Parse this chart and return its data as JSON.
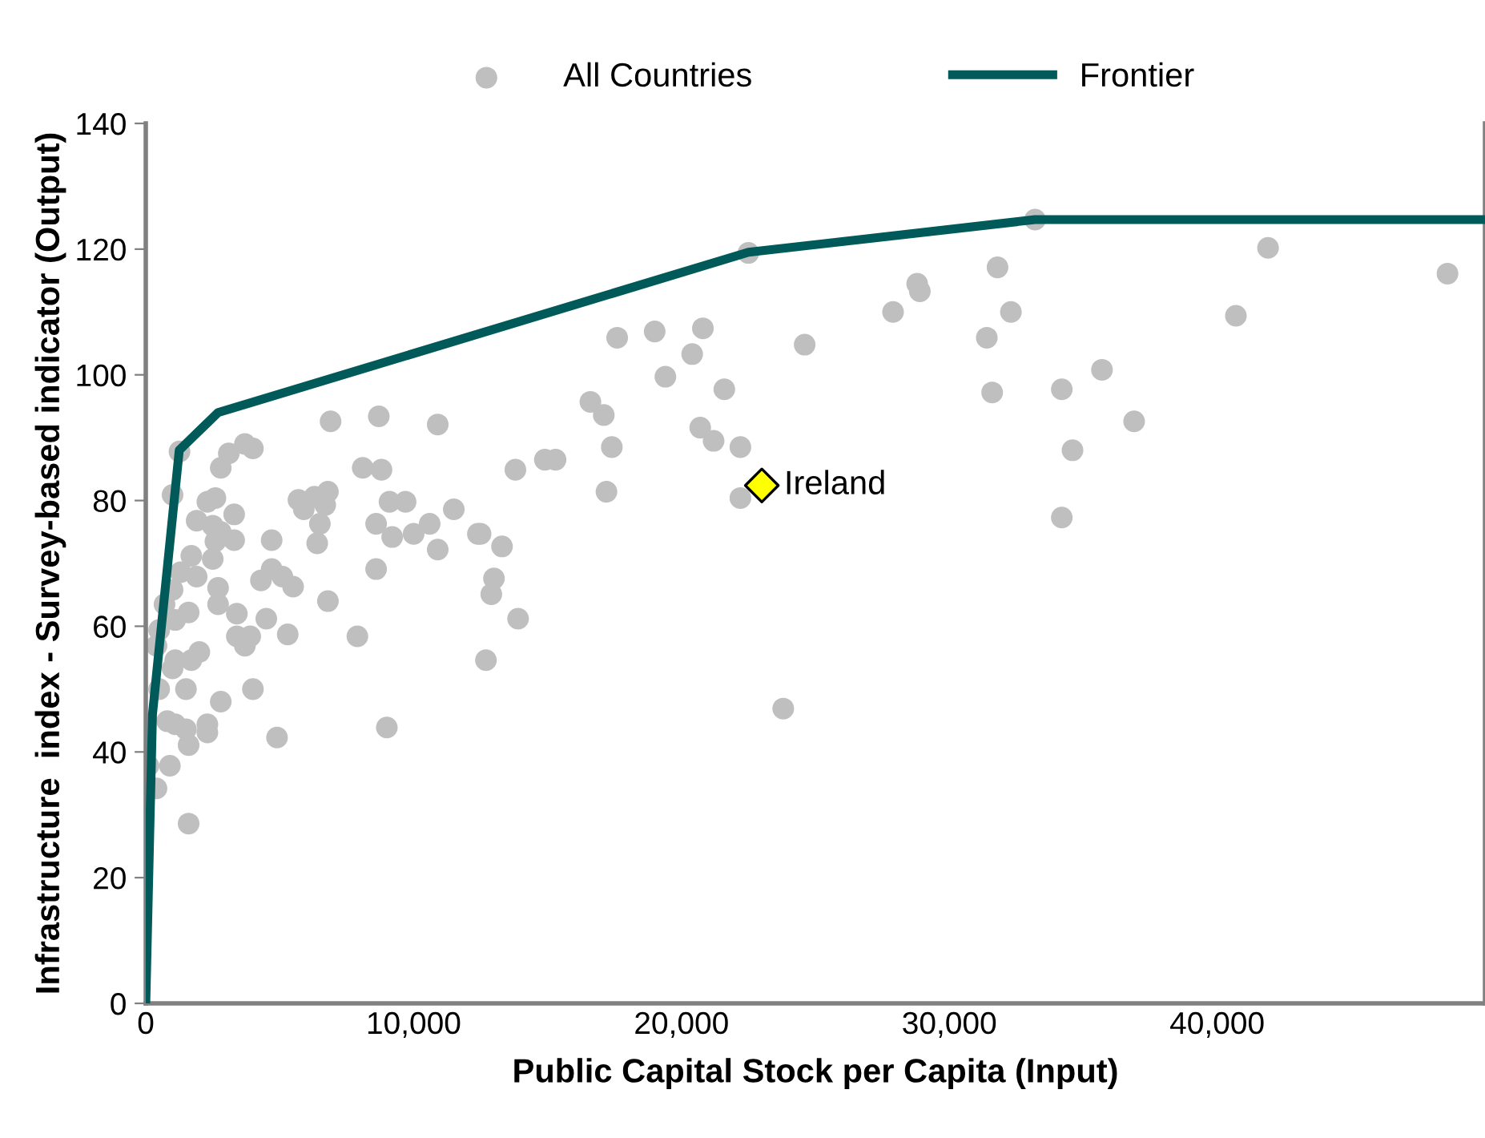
{
  "chart_data": {
    "type": "scatter",
    "xlabel": "Public Capital Stock per Capita (Input)",
    "ylabel": "Infrastructure  index - Survey-based indicator (Output)",
    "xlim": [
      0,
      50000
    ],
    "ylim": [
      0,
      140
    ],
    "xticks": [
      {
        "value": 0,
        "label": "0"
      },
      {
        "value": 10000,
        "label": "10,000"
      },
      {
        "value": 20000,
        "label": "20,000"
      },
      {
        "value": 30000,
        "label": "30,000"
      },
      {
        "value": 40000,
        "label": "40,000"
      }
    ],
    "yticks": [
      0,
      20,
      40,
      60,
      80,
      100,
      120,
      140
    ],
    "grid": false,
    "legend": "top",
    "series": [
      {
        "name": "All Countries",
        "marker": "circle",
        "color": "#bfbfbf",
        "x": [
          33200,
          41900,
          48600,
          31800,
          32300,
          31400,
          31600,
          34200,
          35700,
          36900,
          34600,
          34200,
          40700,
          22500,
          28800,
          28900,
          27900,
          17600,
          19000,
          20800,
          20400,
          24600,
          19400,
          21600,
          16600,
          17100,
          17400,
          17200,
          20700,
          21200,
          22200,
          22200,
          23800,
          13800,
          14900,
          15300,
          12500,
          13300,
          13000,
          12900,
          13900,
          12700,
          1260,
          3700,
          4000,
          3100,
          2800,
          6900,
          8700,
          10900,
          8100,
          8800,
          1000,
          2300,
          2600,
          3300,
          1900,
          2500,
          2800,
          3300,
          2600,
          1700,
          2500,
          1300,
          1900,
          1000,
          1100,
          1600,
          2700,
          2700,
          3400,
          4700,
          4300,
          4700,
          5100,
          5500,
          4500,
          5300,
          6800,
          3400,
          3900,
          3700,
          5700,
          6300,
          6800,
          5900,
          6700,
          6500,
          6400,
          8600,
          9200,
          9100,
          9700,
          10000,
          10600,
          11500,
          10900,
          12400,
          8600,
          7900,
          2000,
          1700,
          1100,
          1000,
          1500,
          500,
          4000,
          2800,
          2300,
          2300,
          800,
          1100,
          1500,
          1600,
          4900,
          9000,
          100,
          900,
          400,
          1600,
          700,
          500,
          400
        ],
        "values": [
          124.7,
          120.2,
          116.1,
          117.1,
          110,
          105.9,
          97.2,
          97.7,
          100.8,
          92.6,
          88,
          77.3,
          109.4,
          119.4,
          114.5,
          113.3,
          110,
          105.9,
          106.9,
          107.4,
          103.3,
          104.8,
          99.7,
          97.7,
          95.7,
          93.6,
          88.5,
          81.4,
          91.6,
          89.5,
          88.5,
          80.4,
          46.9,
          84.9,
          86.5,
          86.5,
          74.7,
          72.7,
          67.6,
          65.1,
          61.2,
          54.6,
          87.8,
          89,
          88.3,
          87.5,
          85.2,
          92.6,
          93.4,
          92.1,
          85.2,
          84.9,
          80.9,
          79.8,
          80.4,
          77.8,
          76.8,
          76,
          75,
          73.7,
          73.5,
          71.2,
          70.7,
          68.6,
          67.9,
          65.8,
          61,
          62.2,
          66.1,
          63.5,
          62,
          73.7,
          67.3,
          69.1,
          67.9,
          66.3,
          61.2,
          58.7,
          64,
          58.4,
          58.4,
          56.9,
          80.1,
          80.6,
          81.4,
          78.6,
          79.3,
          76.3,
          73.2,
          76.3,
          74.2,
          79.8,
          79.8,
          74.7,
          76.3,
          78.6,
          72.2,
          74.7,
          69.1,
          58.4,
          55.9,
          54.6,
          54.6,
          53.3,
          50,
          50,
          50,
          48,
          44.4,
          43.1,
          44.9,
          44.4,
          43.6,
          41.1,
          42.3,
          43.9,
          37.8,
          37.8,
          34.2,
          28.6,
          63.5,
          59.4,
          56.9
        ]
      },
      {
        "name": "Frontier",
        "type": "line",
        "marker": "none",
        "color": "#005a5a",
        "x": [
          0,
          250,
          1250,
          2700,
          22500,
          33200,
          50000
        ],
        "values": [
          0,
          46,
          88,
          94,
          119.5,
          124.7,
          124.7
        ]
      },
      {
        "marker": "diamond",
        "color": "#ffff00",
        "x": [
          23000
        ],
        "values": [
          82.4
        ]
      }
    ],
    "annotations": [
      {
        "text": "Ireland",
        "x": 23000,
        "y": 82.4
      }
    ]
  }
}
